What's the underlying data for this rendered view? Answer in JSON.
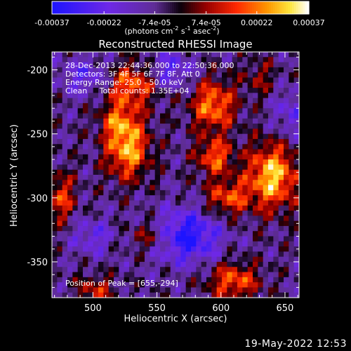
{
  "colorbar": {
    "tick_labels": [
      "-0.00037",
      "-0.00022",
      "-7.4e-05",
      "7.4e-05",
      "0.00022",
      "0.00037"
    ],
    "tick_values": [
      -0.00037,
      -0.00022,
      -7.4e-05,
      7.4e-05,
      0.00022,
      0.00037
    ],
    "range": [
      -0.00037,
      0.00037
    ],
    "units_base": "(photons cm",
    "units_exp1": "-2",
    "units_mid": " s",
    "units_exp2": "-1",
    "units_end": " asec",
    "units_exp3": "-2",
    "units_close": ")",
    "colormap": "IDL color table 3 variant (blue-purple-red-orange-yellow-white)"
  },
  "chart_data": {
    "type": "heatmap",
    "title": "Reconstructed RHESSI Image",
    "xlabel": "Heliocentric X (arcsec)",
    "ylabel": "Heliocentric Y (arcsec)",
    "xlim": [
      468,
      661
    ],
    "ylim": [
      -378,
      -186
    ],
    "x_ticks": [
      500,
      550,
      600,
      650
    ],
    "x_tick_labels": [
      "500",
      "550",
      "600",
      "650"
    ],
    "y_ticks": [
      -200,
      -250,
      -300,
      -350
    ],
    "y_tick_labels": [
      "-200",
      "-250",
      "-300",
      "-350"
    ],
    "peak": [
      655,
      -294
    ],
    "sources": [
      {
        "x": 530,
        "y": -212,
        "amp": 0.00028,
        "sx": 14,
        "sy": 12
      },
      {
        "x": 527,
        "y": -262,
        "amp": 0.00034,
        "sx": 12,
        "sy": 16
      },
      {
        "x": 520,
        "y": -240,
        "amp": 0.0002,
        "sx": 10,
        "sy": 10
      },
      {
        "x": 594,
        "y": -228,
        "amp": 0.0003,
        "sx": 12,
        "sy": 14
      },
      {
        "x": 595,
        "y": -268,
        "amp": 0.00026,
        "sx": 10,
        "sy": 10
      },
      {
        "x": 640,
        "y": -283,
        "amp": 0.00037,
        "sx": 14,
        "sy": 18
      },
      {
        "x": 605,
        "y": -300,
        "amp": 0.00024,
        "sx": 12,
        "sy": 10
      },
      {
        "x": 475,
        "y": -300,
        "amp": 0.00022,
        "sx": 8,
        "sy": 14
      },
      {
        "x": 610,
        "y": -365,
        "amp": 0.00026,
        "sx": 14,
        "sy": 10
      },
      {
        "x": 502,
        "y": -372,
        "amp": 0.00018,
        "sx": 10,
        "sy": 8
      },
      {
        "x": 545,
        "y": -330,
        "amp": 0.00016,
        "sx": 12,
        "sy": 8
      },
      {
        "x": 630,
        "y": -206,
        "amp": 0.00012,
        "sx": 10,
        "sy": 10
      }
    ],
    "troughs": [
      {
        "x": 573,
        "y": -330,
        "amp": -0.0003,
        "sx": 18,
        "sy": 14
      },
      {
        "x": 500,
        "y": -330,
        "amp": -0.00014,
        "sx": 12,
        "sy": 10
      },
      {
        "x": 495,
        "y": -205,
        "amp": -0.00016,
        "sx": 14,
        "sy": 10
      },
      {
        "x": 560,
        "y": -200,
        "amp": -0.00018,
        "sx": 12,
        "sy": 10
      },
      {
        "x": 655,
        "y": -235,
        "amp": -0.00014,
        "sx": 10,
        "sy": 14
      }
    ]
  },
  "annotations": {
    "line1": "28-Dec-2013 22:44:36.000 to 22:50:36.000",
    "line2": "Detectors: 3F 4F 5F 6F 7F 8F, Att 0",
    "line3": "Energy Range: 25.0 - 50.0 keV",
    "line4": "Clean     Total counts: 1.35E+04",
    "peak_label": "Position of Peak = [655,-294]"
  },
  "footer": {
    "date": "19-May-2022 12:53"
  }
}
